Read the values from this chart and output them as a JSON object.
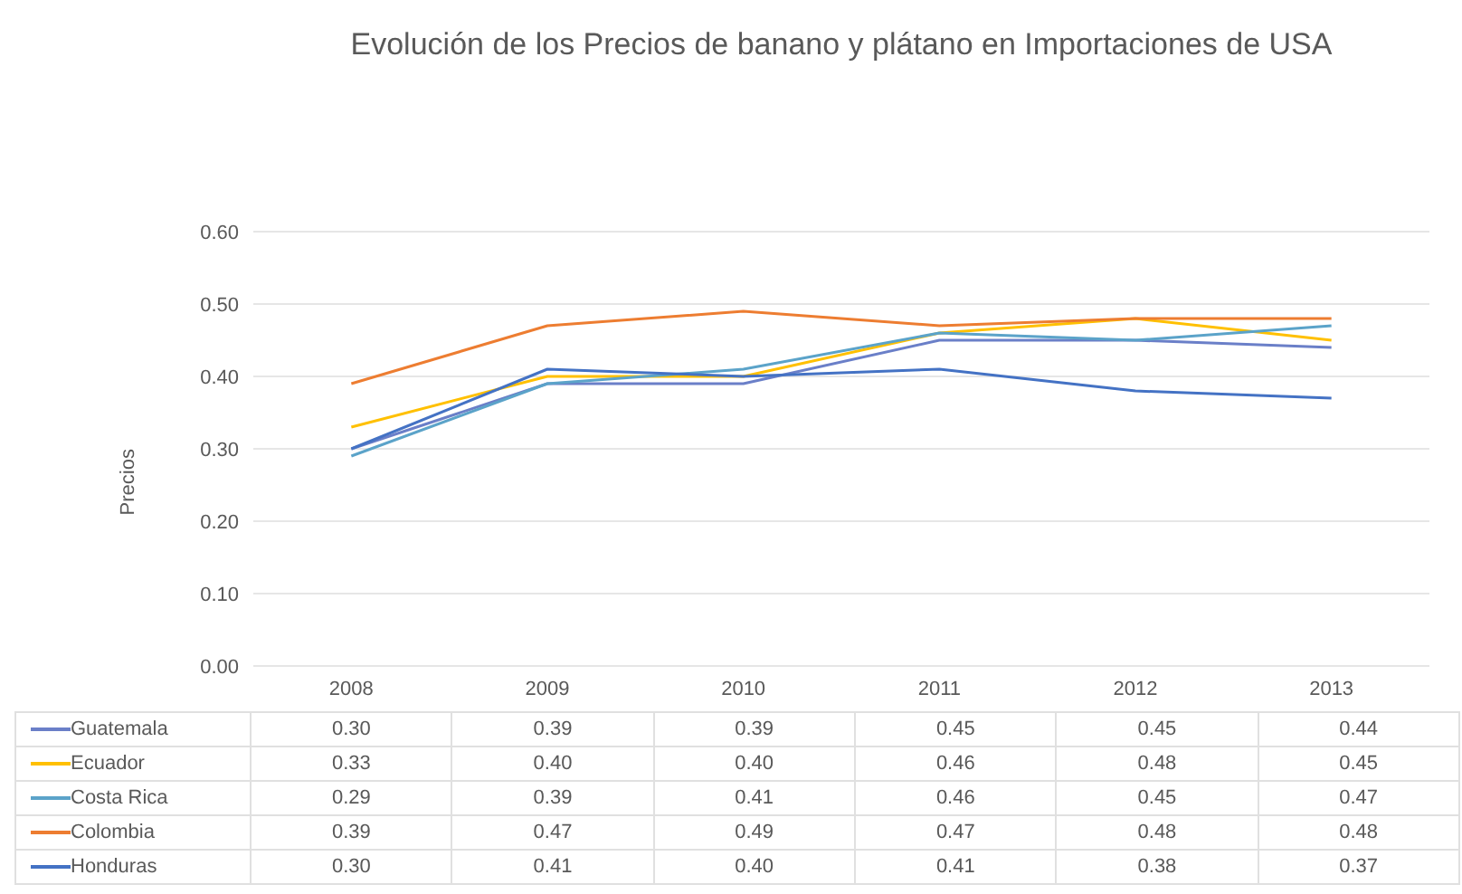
{
  "chart_data": {
    "type": "line",
    "title": "Evolución de los Precios de banano y plátano en Importaciones de USA",
    "ylabel": "Precios",
    "categories": [
      "2008",
      "2009",
      "2010",
      "2011",
      "2012",
      "2013"
    ],
    "series": [
      {
        "name": "Guatemala",
        "color": "#6a7fc8",
        "values": [
          0.3,
          0.39,
          0.39,
          0.45,
          0.45,
          0.44
        ],
        "value_labels": [
          "0.30",
          "0.39",
          "0.39",
          "0.45",
          "0.45",
          "0.44"
        ]
      },
      {
        "name": "Ecuador",
        "color": "#ffc000",
        "values": [
          0.33,
          0.4,
          0.4,
          0.46,
          0.48,
          0.45
        ],
        "value_labels": [
          "0.33",
          "0.40",
          "0.40",
          "0.46",
          "0.48",
          "0.45"
        ]
      },
      {
        "name": "Costa Rica",
        "color": "#5ba3c9",
        "values": [
          0.29,
          0.39,
          0.41,
          0.46,
          0.45,
          0.47
        ],
        "value_labels": [
          "0.29",
          "0.39",
          "0.41",
          "0.46",
          "0.45",
          "0.47"
        ]
      },
      {
        "name": "Colombia",
        "color": "#ed7d31",
        "values": [
          0.39,
          0.47,
          0.49,
          0.47,
          0.48,
          0.48
        ],
        "value_labels": [
          "0.39",
          "0.47",
          "0.49",
          "0.47",
          "0.48",
          "0.48"
        ]
      },
      {
        "name": "Honduras",
        "color": "#4472c4",
        "values": [
          0.3,
          0.41,
          0.4,
          0.41,
          0.38,
          0.37
        ],
        "value_labels": [
          "0.30",
          "0.41",
          "0.40",
          "0.41",
          "0.38",
          "0.37"
        ]
      }
    ],
    "ylim": [
      0,
      0.6
    ],
    "yticks": [
      {
        "value": 0,
        "label": "0.00"
      },
      {
        "value": 0.1,
        "label": "0.10"
      },
      {
        "value": 0.2,
        "label": "0.20"
      },
      {
        "value": 0.3,
        "label": "0.30"
      },
      {
        "value": 0.4,
        "label": "0.40"
      },
      {
        "value": 0.5,
        "label": "0.50"
      },
      {
        "value": 0.6,
        "label": "0.60"
      }
    ],
    "grid": "y",
    "legend": "bottom",
    "marker": "none",
    "line_style": "solid"
  }
}
